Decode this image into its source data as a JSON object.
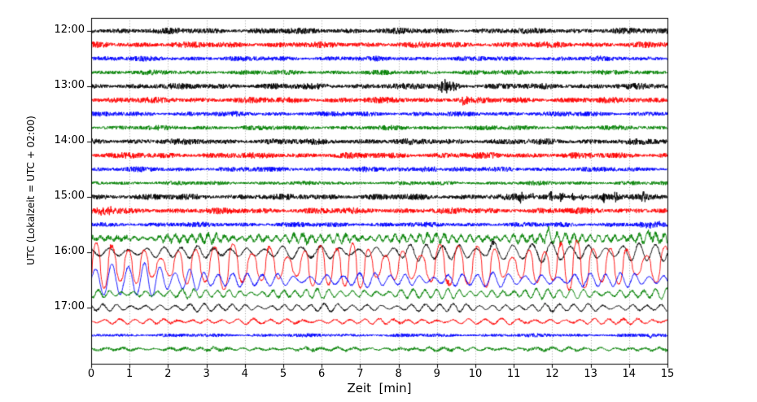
{
  "chart_data": {
    "type": "line",
    "subtype": "seismogram-helicorder",
    "title": "",
    "xlabel": "Zeit  [min]",
    "ylabel": "UTC (Lokalzeit = UTC + 02:00)",
    "xlim": [
      0,
      15
    ],
    "x_ticks": [
      0,
      1,
      2,
      3,
      4,
      5,
      6,
      7,
      8,
      9,
      10,
      11,
      12,
      13,
      14,
      15
    ],
    "y_tick_labels": [
      "12:00",
      "13:00",
      "14:00",
      "15:00",
      "16:00",
      "17:00"
    ],
    "minutes_per_line": 15,
    "lines_per_hour": 4,
    "grid": {
      "vertical": true,
      "style": "dotted",
      "color": "#8c8c8c"
    },
    "axis_color": "#000000",
    "background": "#ffffff",
    "color_cycle": {
      "black": "#000000",
      "red": "#ff0000",
      "blue": "#0000ff",
      "green": "#008000"
    },
    "rows": [
      {
        "time": "12:00",
        "show_label": true,
        "color": "#000000",
        "noise_amp": 2.9
      },
      {
        "time": "12:15",
        "show_label": false,
        "color": "#ff0000",
        "noise_amp": 2.9
      },
      {
        "time": "12:30",
        "show_label": false,
        "color": "#0000ff",
        "noise_amp": 2.4
      },
      {
        "time": "12:45",
        "show_label": false,
        "color": "#008000",
        "noise_amp": 2.3
      },
      {
        "time": "13:00",
        "show_label": true,
        "color": "#000000",
        "noise_amp": 2.9,
        "events": [
          {
            "kind": "burst",
            "t0": 8.9,
            "t1": 9.65,
            "amp": 7.5
          }
        ]
      },
      {
        "time": "13:15",
        "show_label": false,
        "color": "#ff0000",
        "noise_amp": 2.9,
        "events": [
          {
            "kind": "burst",
            "t0": 9.5,
            "t1": 9.9,
            "amp": 4.5
          }
        ]
      },
      {
        "time": "13:30",
        "show_label": false,
        "color": "#0000ff",
        "noise_amp": 2.4
      },
      {
        "time": "13:45",
        "show_label": false,
        "color": "#008000",
        "noise_amp": 2.3
      },
      {
        "time": "14:00",
        "show_label": true,
        "color": "#000000",
        "noise_amp": 2.9
      },
      {
        "time": "14:15",
        "show_label": false,
        "color": "#ff0000",
        "noise_amp": 2.9
      },
      {
        "time": "14:30",
        "show_label": false,
        "color": "#0000ff",
        "noise_amp": 2.4,
        "events": [
          {
            "kind": "burst",
            "t0": 8.5,
            "t1": 9.1,
            "amp": 3.2
          }
        ]
      },
      {
        "time": "14:45",
        "show_label": false,
        "color": "#008000",
        "noise_amp": 2.0
      },
      {
        "time": "15:00",
        "show_label": true,
        "color": "#000000",
        "noise_amp": 2.9,
        "events": [
          {
            "kind": "spike",
            "t": 11.15,
            "amp": 7,
            "w": 0.12
          },
          {
            "kind": "spike",
            "t": 11.5,
            "amp": 4.5,
            "w": 0.1
          },
          {
            "kind": "spike",
            "t": 11.95,
            "amp": 9,
            "w": 0.1
          },
          {
            "kind": "spike",
            "t": 12.25,
            "amp": 8,
            "w": 0.1
          },
          {
            "kind": "spike",
            "t": 12.55,
            "amp": 6,
            "w": 0.1
          },
          {
            "kind": "spike",
            "t": 12.78,
            "amp": 5,
            "w": 0.08
          },
          {
            "kind": "spike",
            "t": 13.35,
            "amp": 8,
            "w": 0.09
          },
          {
            "kind": "spike",
            "t": 13.65,
            "amp": 7,
            "w": 0.09
          },
          {
            "kind": "spike",
            "t": 14.35,
            "amp": 10,
            "w": 0.1
          }
        ]
      },
      {
        "time": "15:15",
        "show_label": false,
        "color": "#ff0000",
        "noise_amp": 3.0,
        "events": [
          {
            "kind": "burst",
            "t0": 0.0,
            "t1": 0.7,
            "amp": 4
          }
        ]
      },
      {
        "time": "15:30",
        "show_label": false,
        "color": "#0000ff",
        "noise_amp": 2.4,
        "events": [
          {
            "kind": "burst",
            "t0": 14.2,
            "t1": 14.9,
            "amp": 3.5
          }
        ]
      },
      {
        "time": "15:45",
        "show_label": false,
        "color": "#008000",
        "noise_amp": 2.6,
        "wave": {
          "period": 0.22,
          "amp_pts": [
            [
              0,
              1.5
            ],
            [
              3,
              3.5
            ],
            [
              15,
              4.5
            ]
          ]
        },
        "events": [
          {
            "kind": "spike",
            "t": 11.9,
            "amp": 9,
            "w": 0.1,
            "dir": 1
          },
          {
            "kind": "spike",
            "t": 14.55,
            "amp": 10,
            "w": 0.1,
            "dir": 1
          }
        ]
      },
      {
        "time": "16:00",
        "show_label": true,
        "color": "#000000",
        "noise_amp": 1.2,
        "wave": {
          "period": 0.46,
          "amp_pts": [
            [
              0,
              5
            ],
            [
              7,
              6
            ],
            [
              10,
              8
            ],
            [
              15,
              9
            ]
          ]
        },
        "events": [
          {
            "kind": "spike",
            "t": 10.45,
            "amp": 11,
            "w": 0.14,
            "dir": 1
          }
        ]
      },
      {
        "time": "16:15",
        "show_label": false,
        "color": "#ff0000",
        "noise_amp": 1.0,
        "wave": {
          "period": 0.45,
          "spiky": true,
          "amp_pts": [
            [
              0,
              19
            ],
            [
              15,
              21
            ]
          ]
        },
        "events": [
          {
            "kind": "spike",
            "t": 0.5,
            "amp": 8,
            "w": 0.12,
            "dir": 1
          },
          {
            "kind": "spike",
            "t": 4.6,
            "amp": 9,
            "w": 0.12,
            "dir": 1
          },
          {
            "kind": "spike",
            "t": 9.3,
            "amp": 11,
            "w": 0.12,
            "dir": 1
          },
          {
            "kind": "spike",
            "t": 12.2,
            "amp": 10,
            "w": 0.12,
            "dir": 1
          },
          {
            "kind": "spike",
            "t": 13.9,
            "amp": 8,
            "w": 0.12,
            "dir": 1
          }
        ]
      },
      {
        "time": "16:30",
        "show_label": false,
        "color": "#0000ff",
        "noise_amp": 1.0,
        "wave": {
          "period": 0.4,
          "amp_pts": [
            [
              0,
              15
            ],
            [
              2.6,
              15
            ],
            [
              3.6,
              6
            ],
            [
              15,
              6.5
            ]
          ]
        }
      },
      {
        "time": "16:45",
        "show_label": false,
        "color": "#008000",
        "noise_amp": 1.3,
        "wave": {
          "period": 0.3,
          "amp_pts": [
            [
              0,
              3.5
            ],
            [
              15,
              4.5
            ]
          ]
        }
      },
      {
        "time": "17:00",
        "show_label": true,
        "color": "#000000",
        "noise_amp": 1.0,
        "wave": {
          "period": 0.36,
          "amp_pts": [
            [
              0,
              3.2
            ],
            [
              15,
              3.6
            ]
          ]
        }
      },
      {
        "time": "17:15",
        "show_label": false,
        "color": "#ff0000",
        "noise_amp": 1.1,
        "wave": {
          "period": 0.4,
          "amp_pts": [
            [
              0,
              2.2
            ],
            [
              15,
              2.6
            ]
          ]
        }
      },
      {
        "time": "17:30",
        "show_label": false,
        "color": "#0000ff",
        "noise_amp": 1.7,
        "events": [
          {
            "kind": "spike",
            "t": 14.55,
            "amp": 5,
            "w": 0.06,
            "dir": -1
          }
        ]
      },
      {
        "time": "17:45",
        "show_label": false,
        "color": "#008000",
        "noise_amp": 1.5,
        "wave": {
          "period": 0.4,
          "amp_pts": [
            [
              0,
              1.2
            ],
            [
              15,
              1.6
            ]
          ]
        }
      }
    ]
  }
}
